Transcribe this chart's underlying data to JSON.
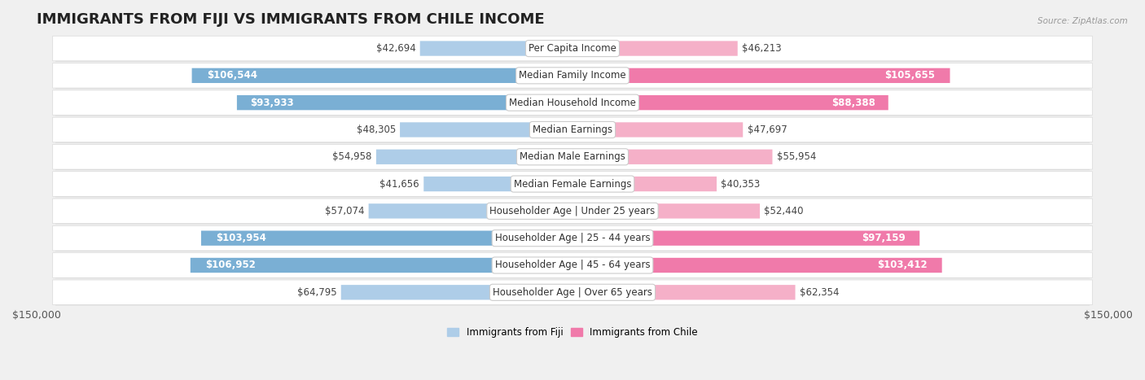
{
  "title": "IMMIGRANTS FROM FIJI VS IMMIGRANTS FROM CHILE INCOME",
  "source": "Source: ZipAtlas.com",
  "categories": [
    "Per Capita Income",
    "Median Family Income",
    "Median Household Income",
    "Median Earnings",
    "Median Male Earnings",
    "Median Female Earnings",
    "Householder Age | Under 25 years",
    "Householder Age | 25 - 44 years",
    "Householder Age | 45 - 64 years",
    "Householder Age | Over 65 years"
  ],
  "fiji_values": [
    42694,
    106544,
    93933,
    48305,
    54958,
    41656,
    57074,
    103954,
    106952,
    64795
  ],
  "chile_values": [
    46213,
    105655,
    88388,
    47697,
    55954,
    40353,
    52440,
    97159,
    103412,
    62354
  ],
  "fiji_labels": [
    "$42,694",
    "$106,544",
    "$93,933",
    "$48,305",
    "$54,958",
    "$41,656",
    "$57,074",
    "$103,954",
    "$106,952",
    "$64,795"
  ],
  "chile_labels": [
    "$46,213",
    "$105,655",
    "$88,388",
    "$47,697",
    "$55,954",
    "$40,353",
    "$52,440",
    "$97,159",
    "$103,412",
    "$62,354"
  ],
  "fiji_color_light": "#aecde8",
  "fiji_color_dark": "#7aafd4",
  "chile_color_light": "#f5b0c8",
  "chile_color_dark": "#f07aaa",
  "max_value": 150000,
  "fiji_legend": "Immigrants from Fiji",
  "chile_legend": "Immigrants from Chile",
  "bg_color": "#f0f0f0",
  "row_bg": "#ffffff",
  "row_border": "#d8d8d8",
  "title_fontsize": 13,
  "label_fontsize": 8.5,
  "bar_label_fontsize": 8.5,
  "axis_label_fontsize": 9,
  "fiji_inside_threshold": 65000,
  "chile_inside_threshold": 65000
}
